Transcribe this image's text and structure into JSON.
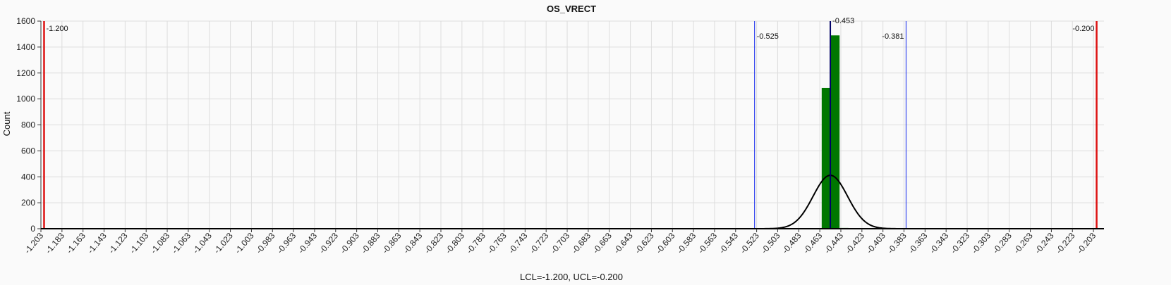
{
  "chart_data": {
    "type": "bar",
    "title": "OS_VRECT",
    "xlabel": "LCL=-1.200, UCL=-0.200",
    "ylabel": "Count",
    "xlim": [
      -1.203,
      -0.193
    ],
    "ylim": [
      0,
      1600
    ],
    "yticks": [
      "0",
      "200",
      "400",
      "600",
      "800",
      "1000",
      "1200",
      "1400",
      "1600"
    ],
    "xticks": [
      "-1.203",
      "-1.183",
      "-1.163",
      "-1.143",
      "-1.123",
      "-1.103",
      "-1.083",
      "-1.063",
      "-1.043",
      "-1.023",
      "-1.003",
      "-0.983",
      "-0.963",
      "-0.943",
      "-0.923",
      "-0.903",
      "-0.883",
      "-0.863",
      "-0.843",
      "-0.823",
      "-0.803",
      "-0.783",
      "-0.763",
      "-0.743",
      "-0.723",
      "-0.703",
      "-0.683",
      "-0.663",
      "-0.643",
      "-0.623",
      "-0.603",
      "-0.583",
      "-0.563",
      "-0.543",
      "-0.523",
      "-0.503",
      "-0.483",
      "-0.463",
      "-0.443",
      "-0.423",
      "-0.403",
      "-0.383",
      "-0.363",
      "-0.343",
      "-0.323",
      "-0.303",
      "-0.283",
      "-0.263",
      "-0.243",
      "-0.223",
      "-0.203"
    ],
    "grid": true,
    "bars": [
      {
        "x0": -0.4612,
        "x1": -0.453,
        "value": 1085
      },
      {
        "x0": -0.4526,
        "x1": -0.4442,
        "value": 1490
      },
      {
        "x0": -0.4438,
        "x1": -0.4358,
        "value": 6
      }
    ],
    "normal_curve": {
      "mean": -0.453,
      "sd": 0.0164,
      "peak": 412
    },
    "vertical_lines": [
      {
        "x": -1.2,
        "label": "-1.200",
        "color": "#dd1111",
        "kind": "lcl",
        "label_side": "right"
      },
      {
        "x": -0.2,
        "label": "-0.200",
        "color": "#dd1111",
        "kind": "ucl",
        "label_side": "left"
      },
      {
        "x": -0.525,
        "label": "-0.525",
        "color": "#3344ee",
        "kind": "sigma",
        "label_side": "right"
      },
      {
        "x": -0.381,
        "label": "-0.381",
        "color": "#3344ee",
        "kind": "sigma",
        "label_side": "left"
      },
      {
        "x": -0.453,
        "label": "-0.453",
        "color": "#000066",
        "kind": "mean",
        "label_side": "right"
      }
    ],
    "bar_color": "#007700",
    "curve_color": "#000000"
  }
}
